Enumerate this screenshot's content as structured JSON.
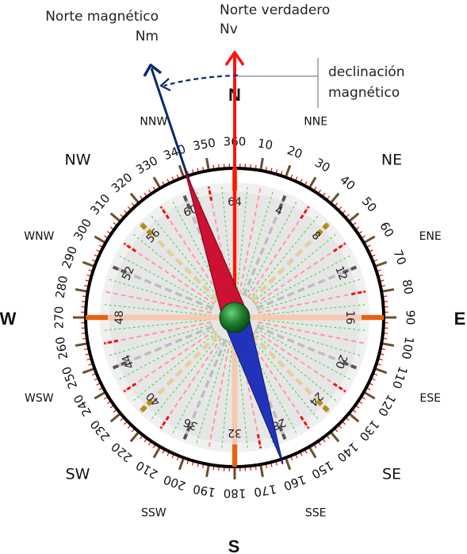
{
  "header": {
    "magnetic_north_label": "Norte magnético",
    "magnetic_north_abbr": "Nm",
    "true_north_label": "Norte verdadero",
    "true_north_abbr": "Nv",
    "declination_line1": "declinación",
    "declination_line2": "magnético"
  },
  "cardinals": {
    "n": "N",
    "s": "S",
    "e": "E",
    "w": "W"
  },
  "intercardinals": [
    {
      "label": "NNE",
      "az": 22.5
    },
    {
      "label": "NE",
      "az": 45
    },
    {
      "label": "ENE",
      "az": 67.5
    },
    {
      "label": "ESE",
      "az": 112.5
    },
    {
      "label": "SE",
      "az": 135
    },
    {
      "label": "SSE",
      "az": 157.5
    },
    {
      "label": "SSW",
      "az": 202.5
    },
    {
      "label": "SW",
      "az": 225
    },
    {
      "label": "WSW",
      "az": 247.5
    },
    {
      "label": "WNW",
      "az": 292.5
    },
    {
      "label": "NW",
      "az": 315
    },
    {
      "label": "NNW",
      "az": 337.5
    }
  ],
  "degree_labels": [
    "360",
    "10",
    "20",
    "30",
    "40",
    "50",
    "60",
    "70",
    "80",
    "90",
    "100",
    "110",
    "120",
    "130",
    "140",
    "150",
    "160",
    "170",
    "180",
    "190",
    "200",
    "210",
    "220",
    "230",
    "240",
    "250",
    "260",
    "270",
    "280",
    "290",
    "300",
    "310",
    "320",
    "330",
    "340",
    "350"
  ],
  "inner_labels": [
    "64",
    "4",
    "8",
    "12",
    "16",
    "20",
    "24",
    "28",
    "32",
    "36",
    "40",
    "44",
    "48",
    "52",
    "56",
    "60"
  ],
  "colors": {
    "true_north": "#ff0000",
    "magnetic_north": "#0a2a6e",
    "needle_north": "#cc1133",
    "needle_south": "#2233bb",
    "pivot": "#1e7a2e",
    "tick_major": "#6b4e2a",
    "tick_minor": "#ee1111",
    "cardinal_line": "#e8620c"
  },
  "magnetic_declination_deg": -13
}
